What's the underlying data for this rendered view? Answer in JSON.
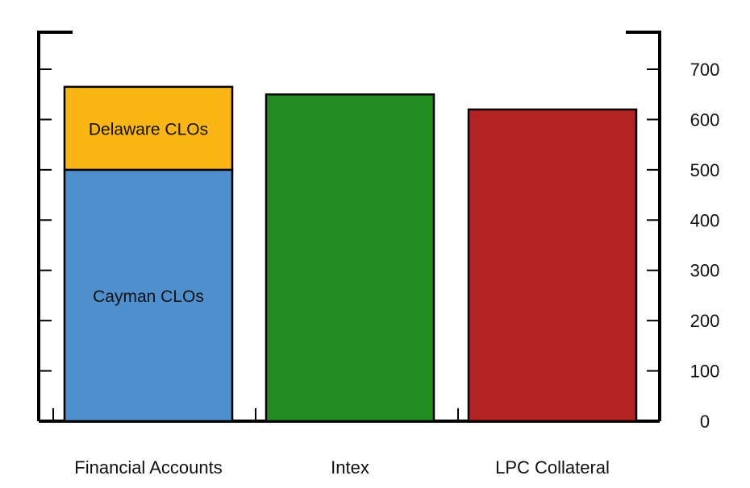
{
  "chart_data": {
    "type": "bar",
    "categories": [
      "Financial Accounts",
      "Intex",
      "LPC Collateral"
    ],
    "series": [
      {
        "name": "Cayman CLOs",
        "values": [
          500,
          null,
          null
        ],
        "color": "#4f8fce"
      },
      {
        "name": "Delaware CLOs",
        "values": [
          165,
          null,
          null
        ],
        "color": "#fbb514"
      },
      {
        "values": [
          null,
          650,
          null
        ],
        "color": "#228b22"
      },
      {
        "values": [
          null,
          null,
          620
        ],
        "color": "#b22222"
      }
    ],
    "ylim": [
      0,
      700
    ],
    "yticks": [
      0,
      100,
      200,
      300,
      400,
      500,
      600,
      700
    ],
    "y_axis_side": "right",
    "grid": false,
    "legend": "none"
  }
}
